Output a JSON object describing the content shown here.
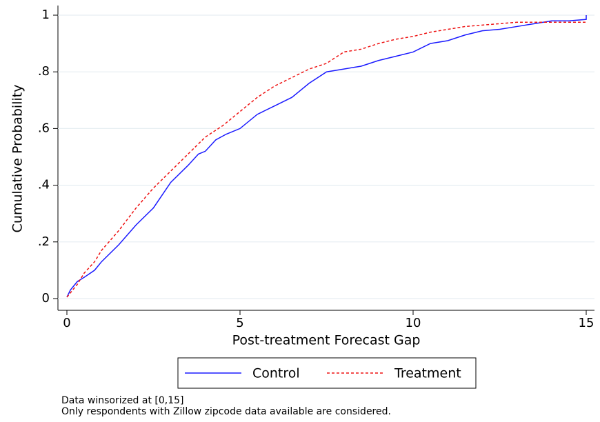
{
  "chart_data": {
    "type": "line",
    "xlabel": "Post-treatment Forecast Gap",
    "ylabel": "Cumulative Probability",
    "xlim": [
      0,
      15
    ],
    "ylim": [
      0,
      1
    ],
    "xticks": [
      0,
      5,
      10,
      15
    ],
    "yticks": [
      0,
      {
        "value": 0.2,
        "label": ".2"
      },
      {
        "value": 0.4,
        "label": ".4"
      },
      {
        "value": 0.6,
        "label": ".6"
      },
      {
        "value": 0.8,
        "label": ".8"
      },
      1
    ],
    "grid": true,
    "series": [
      {
        "name": "Control",
        "color": "#1a1aff",
        "dash": "solid",
        "x": [
          0,
          0.1,
          0.3,
          0.5,
          0.8,
          1,
          1.5,
          2,
          2.5,
          3,
          3.5,
          3.8,
          4,
          4.3,
          4.6,
          5,
          5.5,
          6,
          6.5,
          7,
          7.5,
          8,
          8.5,
          9,
          9.5,
          10,
          10.5,
          11,
          11.5,
          12,
          12.5,
          13,
          13.5,
          14,
          14.5,
          15,
          15
        ],
        "values": [
          0.005,
          0.03,
          0.06,
          0.075,
          0.1,
          0.13,
          0.19,
          0.26,
          0.32,
          0.41,
          0.47,
          0.51,
          0.52,
          0.56,
          0.58,
          0.6,
          0.65,
          0.68,
          0.71,
          0.76,
          0.8,
          0.81,
          0.82,
          0.84,
          0.855,
          0.87,
          0.9,
          0.91,
          0.93,
          0.945,
          0.95,
          0.96,
          0.97,
          0.98,
          0.98,
          0.985,
          1.0
        ]
      },
      {
        "name": "Treatment",
        "color": "#ee1111",
        "dash": "dashed",
        "x": [
          0,
          0.3,
          0.5,
          0.8,
          1,
          1.5,
          2,
          2.5,
          3,
          3.5,
          4,
          4.5,
          5,
          5.5,
          6,
          6.5,
          7,
          7.5,
          8,
          8.5,
          9,
          9.5,
          10,
          10.5,
          11,
          11.5,
          12,
          12.5,
          13,
          14,
          15
        ],
        "values": [
          0.005,
          0.05,
          0.09,
          0.13,
          0.17,
          0.24,
          0.32,
          0.39,
          0.45,
          0.51,
          0.57,
          0.61,
          0.66,
          0.71,
          0.75,
          0.78,
          0.81,
          0.83,
          0.87,
          0.88,
          0.9,
          0.915,
          0.925,
          0.94,
          0.95,
          0.96,
          0.965,
          0.97,
          0.975,
          0.975,
          0.975
        ]
      }
    ],
    "notes": [
      "Data winsorized at [0,15]",
      "Only respondents with Zillow zipcode data available are considered."
    ]
  }
}
